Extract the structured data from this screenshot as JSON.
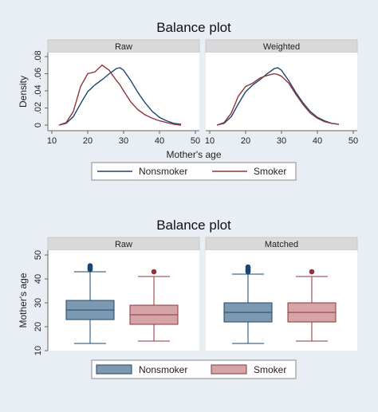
{
  "chart_data": [
    {
      "type": "line",
      "title": "Balance plot",
      "panels": [
        "Raw",
        "Weighted"
      ],
      "xlabel": "Mother's age",
      "ylabel": "Density",
      "xlim": [
        10,
        50
      ],
      "ylim": [
        0,
        0.08
      ],
      "xticks": [
        10,
        20,
        30,
        40,
        50
      ],
      "yticks": [
        0,
        0.02,
        0.04,
        0.06,
        0.08
      ],
      "ytick_labels": [
        "0",
        ".02",
        ".04",
        ".06",
        ".08"
      ],
      "legend": [
        "Nonsmoker",
        "Smoker"
      ],
      "legend_position": "bottom",
      "colors": {
        "nonsmoker": "#1a476f",
        "smoker": "#90353b"
      },
      "grid": false,
      "x": [
        12,
        14,
        16,
        18,
        20,
        22,
        24,
        26,
        28,
        29,
        30,
        32,
        34,
        36,
        38,
        40,
        42,
        44,
        46
      ],
      "series_raw": [
        {
          "name": "Nonsmoker",
          "values": [
            0,
            0.002,
            0.01,
            0.025,
            0.039,
            0.047,
            0.053,
            0.06,
            0.066,
            0.067,
            0.064,
            0.052,
            0.038,
            0.026,
            0.016,
            0.009,
            0.005,
            0.002,
            0.001
          ]
        },
        {
          "name": "Smoker",
          "values": [
            0,
            0.003,
            0.016,
            0.045,
            0.06,
            0.062,
            0.07,
            0.064,
            0.052,
            0.047,
            0.04,
            0.027,
            0.018,
            0.012,
            0.008,
            0.005,
            0.003,
            0.001,
            0
          ]
        }
      ],
      "series_weighted": [
        {
          "name": "Nonsmoker",
          "values": [
            0,
            0.002,
            0.01,
            0.025,
            0.039,
            0.047,
            0.053,
            0.06,
            0.066,
            0.067,
            0.064,
            0.052,
            0.038,
            0.026,
            0.016,
            0.009,
            0.005,
            0.002,
            0.001
          ]
        },
        {
          "name": "Smoker",
          "values": [
            0,
            0.003,
            0.014,
            0.034,
            0.045,
            0.049,
            0.055,
            0.058,
            0.06,
            0.059,
            0.057,
            0.049,
            0.036,
            0.024,
            0.014,
            0.008,
            0.004,
            0.002,
            0.001
          ]
        }
      ]
    },
    {
      "type": "box",
      "title": "Balance plot",
      "panels": [
        "Raw",
        "Matched"
      ],
      "ylabel": "Mother's age",
      "ylim": [
        10,
        52
      ],
      "yticks": [
        10,
        20,
        30,
        40,
        50
      ],
      "legend": [
        "Nonsmoker",
        "Smoker"
      ],
      "legend_position": "bottom",
      "colors": {
        "nonsmoker_fill": "#7d98b1",
        "nonsmoker_line": "#1a476f",
        "smoker_fill": "#d4a4a7",
        "smoker_line": "#90353b"
      },
      "grid": false,
      "boxes_raw": [
        {
          "name": "Nonsmoker",
          "whisker_low": 13,
          "q1": 23,
          "median": 27,
          "q3": 31,
          "whisker_high": 43,
          "outliers": [
            44,
            44.5,
            45,
            45.5
          ]
        },
        {
          "name": "Smoker",
          "whisker_low": 14,
          "q1": 21,
          "median": 25,
          "q3": 29,
          "whisker_high": 41,
          "outliers": [
            43
          ]
        }
      ],
      "boxes_matched": [
        {
          "name": "Nonsmoker",
          "whisker_low": 13,
          "q1": 22,
          "median": 26,
          "q3": 30,
          "whisker_high": 42,
          "outliers": [
            43,
            43.5,
            44,
            44.5,
            45
          ]
        },
        {
          "name": "Smoker",
          "whisker_low": 14,
          "q1": 22,
          "median": 26,
          "q3": 30,
          "whisker_high": 41,
          "outliers": [
            43
          ]
        }
      ]
    }
  ]
}
